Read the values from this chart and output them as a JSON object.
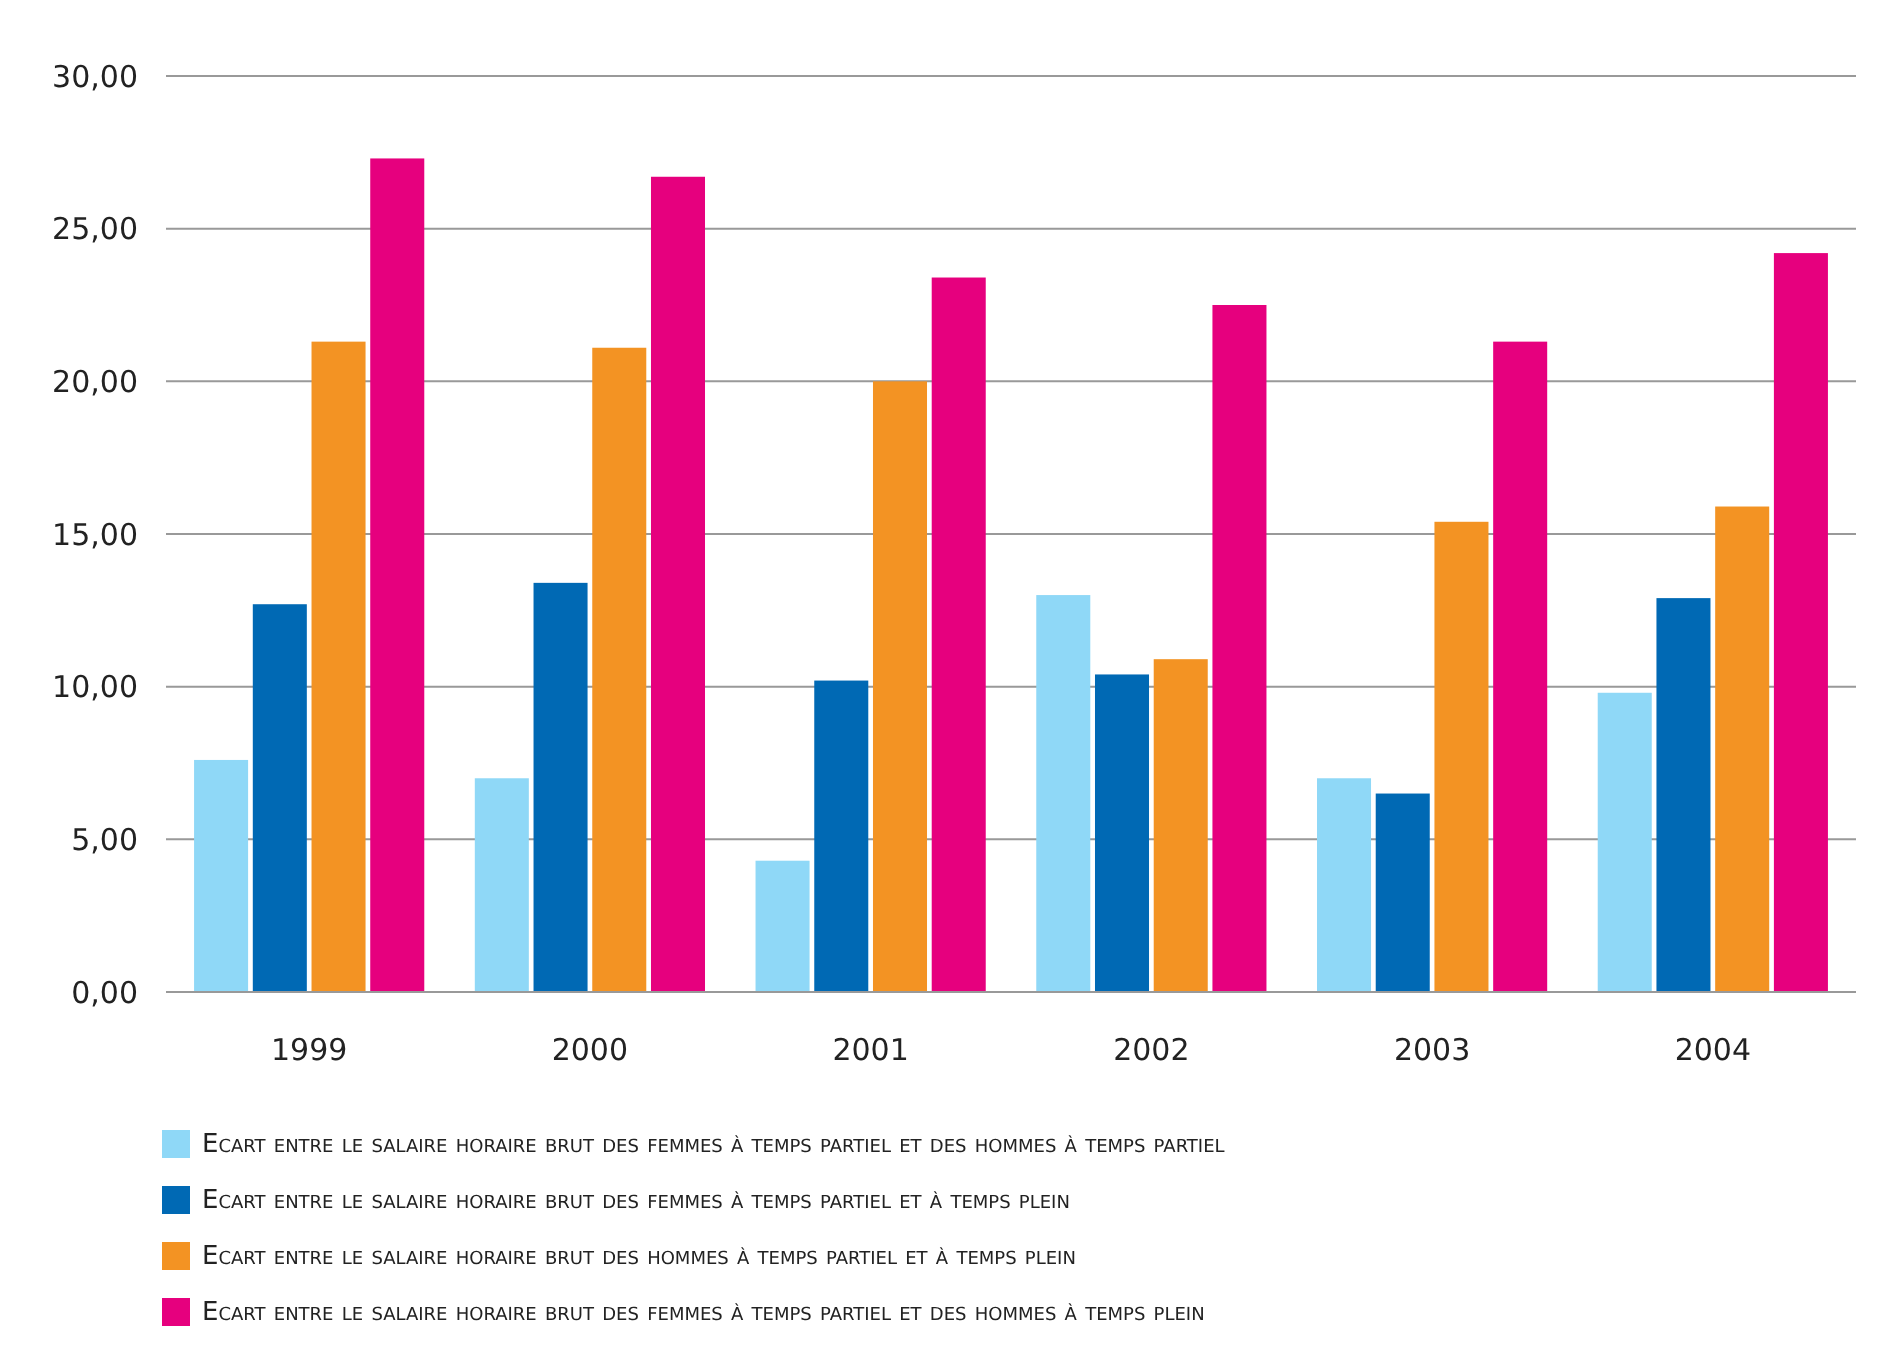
{
  "chart_data": {
    "type": "bar",
    "categories": [
      "1999",
      "2000",
      "2001",
      "2002",
      "2003",
      "2004"
    ],
    "series": [
      {
        "name": "Ecart entre le salaire horaire brut des femmes à temps partiel et des hommes à temps partiel",
        "color": "#8fd8f7",
        "values": [
          7.6,
          7.0,
          4.3,
          13.0,
          7.0,
          9.8
        ]
      },
      {
        "name": "Ecart entre le salaire horaire brut des femmes à temps partiel et à temps plein",
        "color": "#0069b4",
        "values": [
          12.7,
          13.4,
          10.2,
          10.4,
          6.5,
          12.9
        ]
      },
      {
        "name": "Ecart entre le salaire horaire brut des hommes à temps partiel et à temps plein",
        "color": "#f39323",
        "values": [
          21.3,
          21.1,
          20.0,
          10.9,
          15.4,
          15.9
        ]
      },
      {
        "name": "Ecart entre le salaire horaire brut des femmes à temps partiel et des hommes à temps plein",
        "color": "#e6007e",
        "values": [
          27.3,
          26.7,
          23.4,
          22.5,
          21.3,
          24.2
        ]
      }
    ],
    "ylim": [
      0,
      30
    ],
    "yticks": [
      {
        "value": 0,
        "label": "0,00"
      },
      {
        "value": 5,
        "label": "5,00"
      },
      {
        "value": 10,
        "label": "10,00"
      },
      {
        "value": 15,
        "label": "15,00"
      },
      {
        "value": 20,
        "label": "20,00"
      },
      {
        "value": 25,
        "label": "25,00"
      },
      {
        "value": 30,
        "label": "30,00"
      }
    ],
    "grid": "y",
    "legend": "bottom"
  }
}
